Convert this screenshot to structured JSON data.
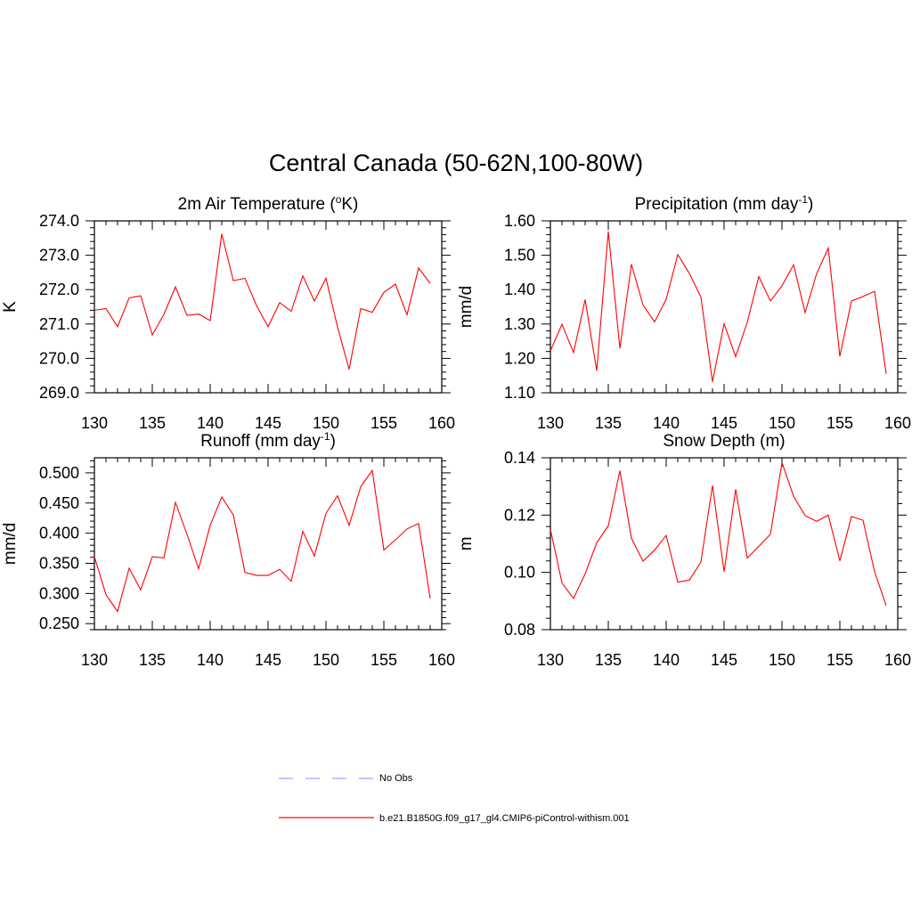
{
  "figure": {
    "title": "Central Canada (50-62N,100-80W)"
  },
  "legend": {
    "placement": "bottom-center",
    "entries": [
      {
        "label": "No Obs",
        "color": "#a0a0ff",
        "dash": "dashed"
      },
      {
        "label": "b.e21.B1850G.f09_g17_gl4.CMIP6-piControl-withism.001",
        "color": "#ff0000",
        "dash": "solid"
      }
    ]
  },
  "chart_data": [
    {
      "type": "line",
      "title_pre": "2m Air Temperature (",
      "title_sup": "o",
      "title_post": "K)",
      "ylabel": "K",
      "xlim": [
        130,
        160
      ],
      "ylim": [
        269,
        274
      ],
      "xticks": [
        130,
        135,
        140,
        145,
        150,
        155,
        160
      ],
      "yticks": [
        269,
        270,
        271,
        272,
        273,
        274
      ],
      "ydecimals": 1,
      "grid": false,
      "series": [
        {
          "color": "#ff0000",
          "x": [
            130,
            131,
            132,
            133,
            134,
            135,
            136,
            137,
            138,
            139,
            140,
            141,
            142,
            143,
            144,
            145,
            146,
            147,
            148,
            149,
            150,
            151,
            152,
            153,
            154,
            155,
            156,
            157,
            158,
            159
          ],
          "values": [
            271.4,
            271.45,
            270.92,
            271.76,
            271.82,
            270.68,
            271.28,
            272.08,
            271.25,
            271.29,
            271.1,
            273.62,
            272.26,
            272.33,
            271.54,
            270.92,
            271.62,
            271.37,
            272.4,
            271.67,
            272.33,
            270.91,
            269.68,
            271.45,
            271.34,
            271.92,
            272.16,
            271.27,
            272.63,
            272.18
          ]
        }
      ]
    },
    {
      "type": "line",
      "title_pre": "Precipitation (mm day",
      "title_sup": "-1",
      "title_post": ")",
      "ylabel": "mm/d",
      "xlim": [
        130,
        160
      ],
      "ylim": [
        1.1,
        1.6
      ],
      "xticks": [
        130,
        135,
        140,
        145,
        150,
        155,
        160
      ],
      "yticks": [
        1.1,
        1.2,
        1.3,
        1.4,
        1.5,
        1.6
      ],
      "ydecimals": 2,
      "grid": false,
      "series": [
        {
          "color": "#ff0000",
          "x": [
            130,
            131,
            132,
            133,
            134,
            135,
            136,
            137,
            138,
            139,
            140,
            141,
            142,
            143,
            144,
            145,
            146,
            147,
            148,
            149,
            150,
            151,
            152,
            153,
            154,
            155,
            156,
            157,
            158,
            159
          ],
          "values": [
            1.222,
            1.299,
            1.217,
            1.371,
            1.164,
            1.569,
            1.229,
            1.474,
            1.355,
            1.306,
            1.372,
            1.502,
            1.447,
            1.378,
            1.132,
            1.301,
            1.205,
            1.305,
            1.438,
            1.367,
            1.411,
            1.472,
            1.333,
            1.447,
            1.521,
            1.206,
            1.367,
            1.38,
            1.395,
            1.155
          ]
        }
      ]
    },
    {
      "type": "line",
      "title_pre": "Runoff (mm day",
      "title_sup": "-1",
      "title_post": ")",
      "ylabel": "mm/d",
      "xlim": [
        130,
        160
      ],
      "ylim": [
        0.24,
        0.525
      ],
      "xticks": [
        130,
        135,
        140,
        145,
        150,
        155,
        160
      ],
      "yticks": [
        0.25,
        0.3,
        0.35,
        0.4,
        0.45,
        0.5
      ],
      "ydecimals": 3,
      "grid": false,
      "series": [
        {
          "color": "#ff0000",
          "x": [
            130,
            131,
            132,
            133,
            134,
            135,
            136,
            137,
            138,
            139,
            140,
            141,
            142,
            143,
            144,
            145,
            146,
            147,
            148,
            149,
            150,
            151,
            152,
            153,
            154,
            155,
            156,
            157,
            158,
            159
          ],
          "values": [
            0.361,
            0.298,
            0.27,
            0.342,
            0.306,
            0.361,
            0.359,
            0.451,
            0.398,
            0.341,
            0.413,
            0.46,
            0.43,
            0.335,
            0.33,
            0.33,
            0.34,
            0.32,
            0.403,
            0.362,
            0.433,
            0.462,
            0.413,
            0.477,
            0.504,
            0.372,
            0.389,
            0.407,
            0.416,
            0.292
          ]
        }
      ]
    },
    {
      "type": "line",
      "title_pre": "Snow Depth (m)",
      "title_sup": "",
      "title_post": "",
      "ylabel": "m",
      "xlim": [
        130,
        160
      ],
      "ylim": [
        0.08,
        0.14
      ],
      "xticks": [
        130,
        135,
        140,
        145,
        150,
        155,
        160
      ],
      "yticks": [
        0.08,
        0.1,
        0.12,
        0.14
      ],
      "ydecimals": 2,
      "grid": false,
      "series": [
        {
          "color": "#ff0000",
          "x": [
            130,
            131,
            132,
            133,
            134,
            135,
            136,
            137,
            138,
            139,
            140,
            141,
            142,
            143,
            144,
            145,
            146,
            147,
            148,
            149,
            150,
            151,
            152,
            153,
            154,
            155,
            156,
            157,
            158,
            159
          ],
          "values": [
            0.115,
            0.0963,
            0.0909,
            0.0995,
            0.1103,
            0.1163,
            0.1355,
            0.1119,
            0.1039,
            0.1078,
            0.1129,
            0.0966,
            0.0973,
            0.1036,
            0.1303,
            0.1002,
            0.129,
            0.105,
            0.1091,
            0.1133,
            0.1383,
            0.1266,
            0.1198,
            0.1178,
            0.12,
            0.104,
            0.1195,
            0.1182,
            0.1002,
            0.0884
          ]
        }
      ]
    }
  ]
}
